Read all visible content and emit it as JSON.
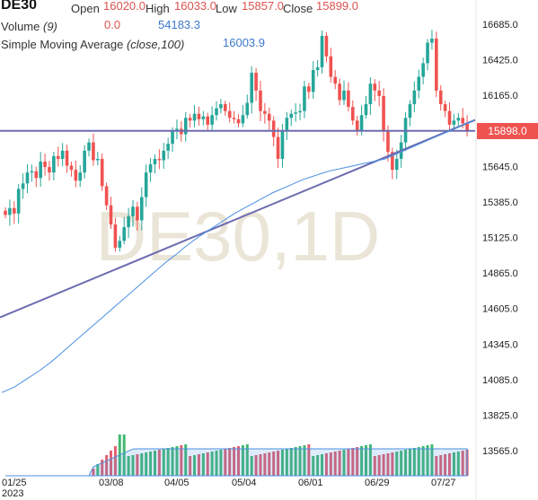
{
  "header": {
    "symbol": "DE30",
    "open_label": "Open",
    "open_value": "16020.0",
    "high_label": "High",
    "high_value": "16033.0",
    "low_label": "Low",
    "low_value": "15857.0",
    "close_label": "Close",
    "close_value": "15899.0",
    "volume_label": "Volume",
    "volume_param": "(9)",
    "volume_value_1": "0.0",
    "volume_value_2": "54183.3",
    "sma_label": "Simple Moving Average",
    "sma_param": "(close,100)",
    "sma_value": "16003.9"
  },
  "watermark": "DE30,1D",
  "last_price_tag": "15898.0",
  "colors": {
    "up": "#26a69a",
    "down": "#ef5350",
    "sma": "#4a90e2",
    "trendline": "#6c6cb0",
    "volume_up": "#42b872",
    "volume_down": "#e06070"
  },
  "chart_data": {
    "type": "candlestick",
    "x_tick_labels": [
      "01/25\n2023",
      "03/08",
      "04/05",
      "05/04",
      "06/01",
      "06/29",
      "07/27"
    ],
    "y_tick_labels": [
      "16685.0",
      "16425.0",
      "16165.0",
      "15905.0",
      "15645.0",
      "15385.0",
      "15125.0",
      "14865.0",
      "14605.0",
      "14345.0",
      "14085.0",
      "13825.0",
      "13565.0"
    ],
    "ylim": [
      13400,
      16900
    ],
    "horizontal_line": 15905,
    "trendline": {
      "from": {
        "date": "2023-01-02",
        "value": 14540
      },
      "to": {
        "date": "2023-08-17",
        "value": 15985
      }
    },
    "sma_points": [
      13990,
      14010,
      14030,
      14060,
      14090,
      14120,
      14150,
      14185,
      14220,
      14260,
      14300,
      14340,
      14380,
      14420,
      14460,
      14500,
      14540,
      14580,
      14620,
      14660,
      14700,
      14740,
      14780,
      14820,
      14860,
      14900,
      14940,
      14975,
      15010,
      15050,
      15085,
      15120,
      15150,
      15180,
      15210,
      15240,
      15270,
      15300,
      15325,
      15350,
      15375,
      15400,
      15425,
      15450,
      15470,
      15490,
      15510,
      15530,
      15550,
      15565,
      15580,
      15595,
      15610,
      15620,
      15630,
      15640,
      15650,
      15660,
      15670,
      15680,
      15690,
      15700,
      15720,
      15740,
      15760,
      15780,
      15800,
      15820,
      15840,
      15860,
      15880,
      15900,
      15920,
      15940,
      15960,
      15980
    ],
    "closes": [
      15290,
      15340,
      15300,
      15480,
      15520,
      15600,
      15610,
      15560,
      15680,
      15640,
      15600,
      15720,
      15700,
      15760,
      15650,
      15620,
      15540,
      15600,
      15760,
      15820,
      15690,
      15700,
      15500,
      15360,
      15220,
      15050,
      15100,
      15200,
      15280,
      15350,
      15250,
      15420,
      15600,
      15660,
      15700,
      15690,
      15760,
      15810,
      15900,
      15920,
      15880,
      16000,
      15980,
      16030,
      15990,
      16010,
      15950,
      16020,
      16070,
      16100,
      16050,
      16000,
      15990,
      15960,
      16020,
      16110,
      16330,
      16200,
      16050,
      16030,
      15980,
      15860,
      15700,
      15900,
      16000,
      16030,
      16040,
      16050,
      16230,
      16190,
      16350,
      16370,
      16600,
      16450,
      16300,
      16250,
      16130,
      16200,
      16080,
      15980,
      15900,
      16020,
      16100,
      16250,
      16200,
      16160,
      15900,
      15750,
      15620,
      15700,
      15820,
      16000,
      16100,
      16200,
      16300,
      16400,
      16550,
      16580,
      16200,
      16100,
      16050,
      15950,
      15980,
      16000,
      15960,
      15899
    ]
  }
}
